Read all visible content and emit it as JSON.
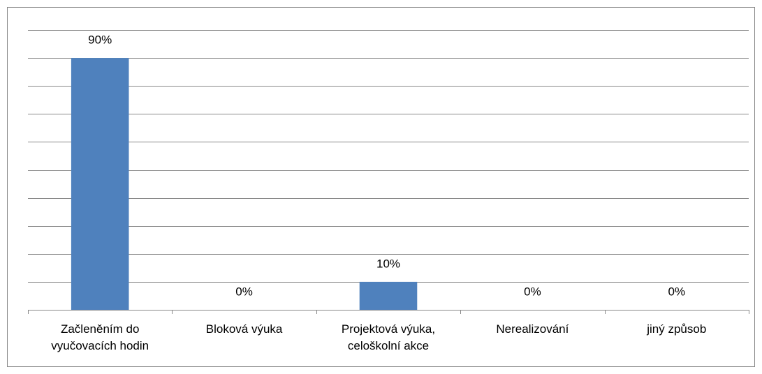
{
  "chart_data": {
    "type": "bar",
    "categories": [
      "Začleněním do vyučovacích hodin",
      "Bloková výuka",
      "Projektová výuka, celoškolní akce",
      "Nerealizování",
      "jiný způsob"
    ],
    "values": [
      90,
      0,
      10,
      0,
      0
    ],
    "value_labels": [
      "90%",
      "0%",
      "10%",
      "0%",
      "0%"
    ],
    "color": "#4f81bd",
    "ylim": [
      0,
      100
    ],
    "yticks": [
      0,
      10,
      20,
      30,
      40,
      50,
      60,
      70,
      80,
      90,
      100
    ],
    "grid": true
  }
}
